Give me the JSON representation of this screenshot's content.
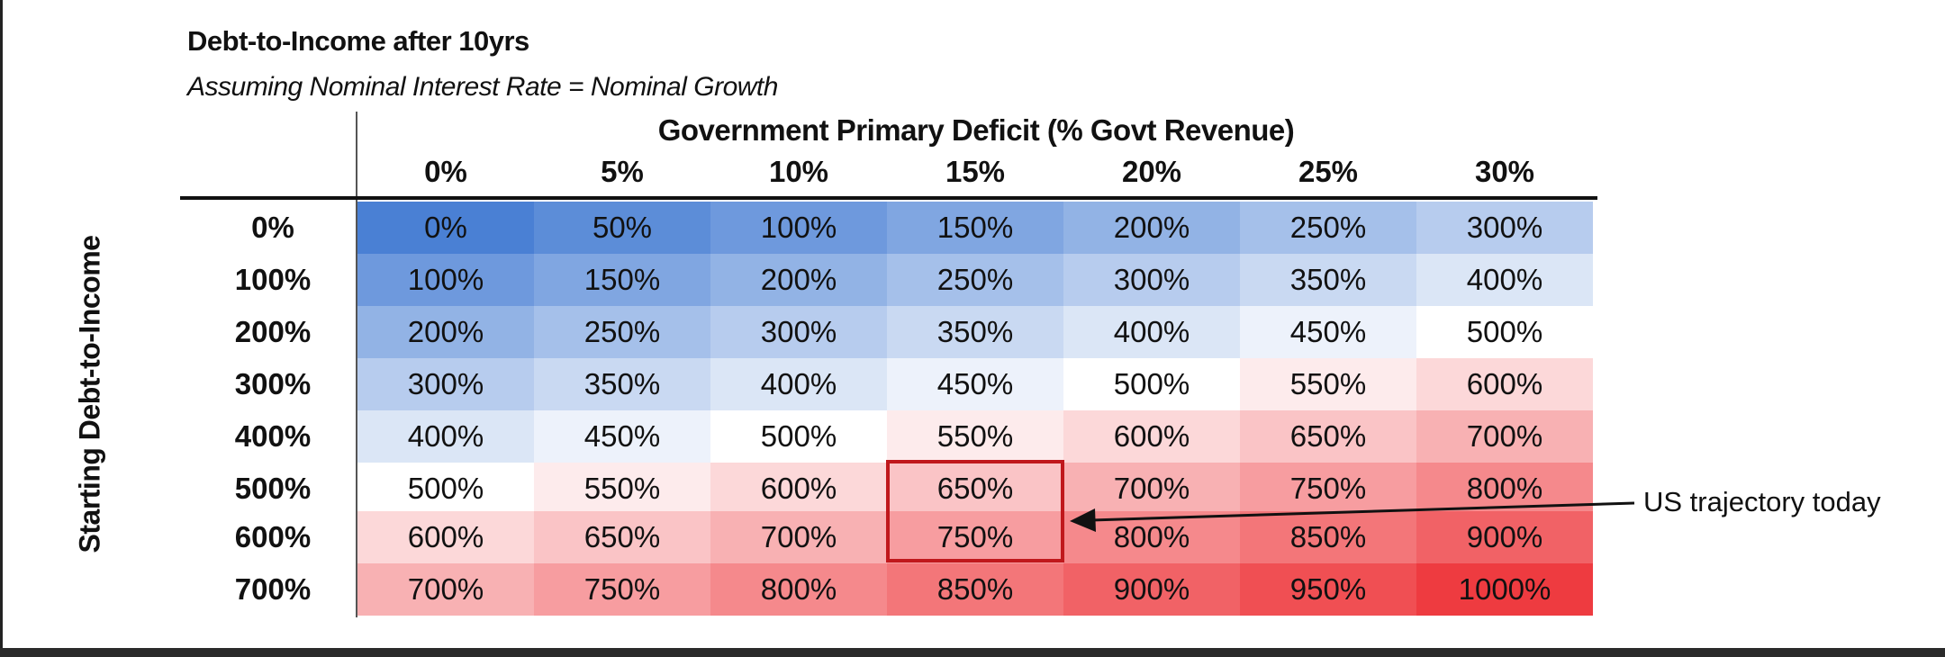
{
  "chart_data": {
    "type": "heatmap",
    "title": "Debt-to-Income after 10yrs",
    "subtitle": "Assuming Nominal Interest Rate = Nominal Growth",
    "xlabel": "Government Primary Deficit (% Govt Revenue)",
    "ylabel": "Starting Debt-to-Income",
    "columns": [
      "0%",
      "5%",
      "10%",
      "15%",
      "20%",
      "25%",
      "30%"
    ],
    "rows": [
      "0%",
      "100%",
      "200%",
      "300%",
      "400%",
      "500%",
      "600%",
      "700%"
    ],
    "values": [
      [
        "0%",
        "50%",
        "100%",
        "150%",
        "200%",
        "250%",
        "300%"
      ],
      [
        "100%",
        "150%",
        "200%",
        "250%",
        "300%",
        "350%",
        "400%"
      ],
      [
        "200%",
        "250%",
        "300%",
        "350%",
        "400%",
        "450%",
        "500%"
      ],
      [
        "300%",
        "350%",
        "400%",
        "450%",
        "500%",
        "550%",
        "600%"
      ],
      [
        "400%",
        "450%",
        "500%",
        "550%",
        "600%",
        "650%",
        "700%"
      ],
      [
        "500%",
        "550%",
        "600%",
        "650%",
        "700%",
        "750%",
        "800%"
      ],
      [
        "600%",
        "650%",
        "700%",
        "750%",
        "800%",
        "850%",
        "900%"
      ],
      [
        "700%",
        "750%",
        "800%",
        "850%",
        "900%",
        "950%",
        "1000%"
      ]
    ],
    "color_scale": {
      "low": "#4a80d4",
      "mid": "#ffffff",
      "high": "#ee3b40",
      "midpoint": 500,
      "max": 1000
    },
    "highlight": {
      "rows": [
        "500%",
        "600%"
      ],
      "column": "15%",
      "color": "#c0181c"
    },
    "annotation": "US trajectory today"
  }
}
